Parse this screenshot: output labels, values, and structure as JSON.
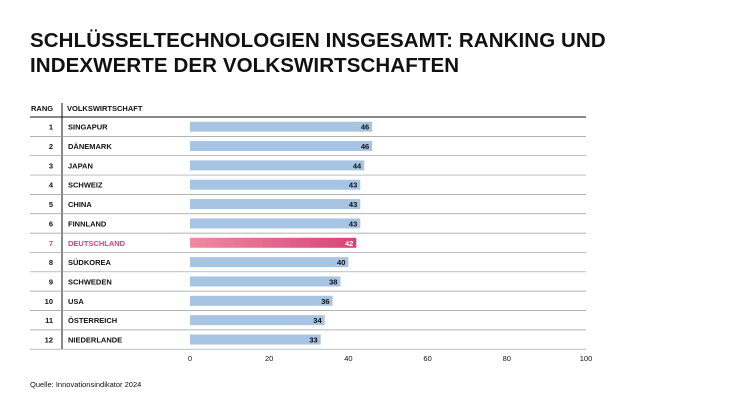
{
  "title_line1": "SCHLÜSSELTECHNOLOGIEN INSGESAMT: RANKING UND",
  "title_line2": "INDEXWERTE DER VOLKSWIRTSCHAFTEN",
  "columns": {
    "rank": "RANG",
    "economy": "VOLKSWIRTSCHAFT"
  },
  "source": "Quelle: Innovationsindikator 2024",
  "colors": {
    "bar": "#a7c4e3",
    "highlight": "#d9437a",
    "highlight_text": "#d9437a",
    "text": "#111111",
    "rule": "#9a9a9a"
  },
  "chart_data": {
    "type": "bar",
    "orientation": "horizontal",
    "title": "SCHLÜSSELTECHNOLOGIEN INSGESAMT: RANKING UND INDEXWERTE DER VOLKSWIRTSCHAFTEN",
    "xlabel": "",
    "ylabel": "VOLKSWIRTSCHAFT",
    "xlim": [
      0,
      100
    ],
    "xticks": [
      "0",
      "20",
      "40",
      "60",
      "80",
      "100"
    ],
    "highlight": "DEUTSCHLAND",
    "ranks": [
      "1",
      "2",
      "3",
      "4",
      "5",
      "6",
      "7",
      "8",
      "9",
      "10",
      "11",
      "12"
    ],
    "categories": [
      "SINGAPUR",
      "DÄNEMARK",
      "JAPAN",
      "SCHWEIZ",
      "CHINA",
      "FINNLAND",
      "DEUTSCHLAND",
      "SÜDKOREA",
      "SCHWEDEN",
      "USA",
      "ÖSTERREICH",
      "NIEDERLANDE"
    ],
    "values": [
      46,
      46,
      44,
      43,
      43,
      43,
      42,
      40,
      38,
      36,
      34,
      33
    ]
  }
}
